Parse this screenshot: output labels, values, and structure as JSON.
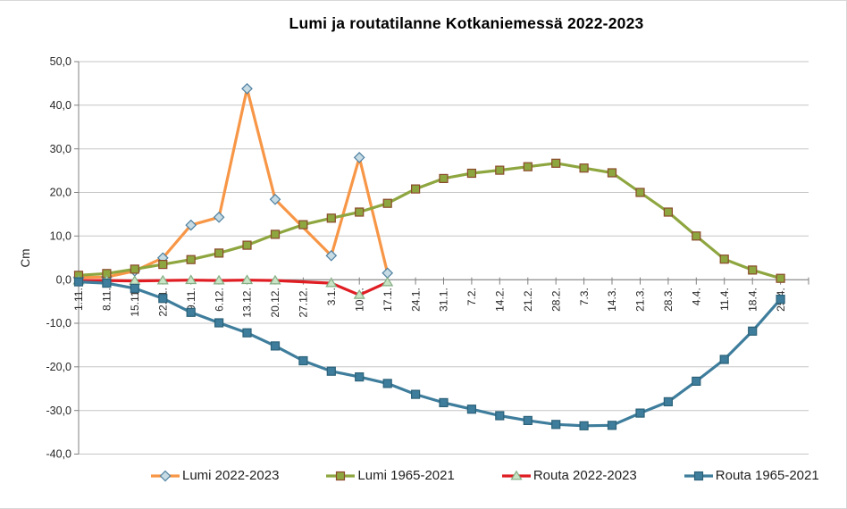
{
  "chart_data": {
    "type": "line",
    "title": "Lumi ja routatilanne Kotkaniemessä 2022-2023",
    "ylabel": "Cm",
    "ylim": [
      -40,
      50
    ],
    "ytick_step": 10,
    "ytick_labels": [
      "50,0",
      "40,0",
      "30,0",
      "20,0",
      "10,0",
      "0,0",
      "-10,0",
      "-20,0",
      "-30,0",
      "-40,0"
    ],
    "grid": "horizontal-only",
    "legend_position": "bottom",
    "categories": [
      "1.11.",
      "8.11.",
      "15.11.",
      "22.11.",
      "29.11.",
      "6.12.",
      "13.12.",
      "20.12.",
      "27.12.",
      "3.1.",
      "10.1.",
      "17.1.",
      "24.1.",
      "31.1.",
      "7.2.",
      "14.2.",
      "21.2.",
      "28.2.",
      "7.3.",
      "14.3.",
      "21.3.",
      "28.3.",
      "4.4.",
      "11.4.",
      "18.4.",
      "25.4."
    ],
    "axis_color": "#808080",
    "gridline_color": "#c6c6c6",
    "tick_label_color": "#262626",
    "series": [
      {
        "name": "Lumi 2022-2023",
        "line_color": "#F79646",
        "marker": "diamond",
        "marker_fill": "#C6DBE4",
        "marker_border": "#4E80A0",
        "values": [
          0.5,
          0.6,
          2.0,
          5.0,
          12.5,
          14.3,
          43.8,
          18.4,
          null,
          5.5,
          28.0,
          1.5,
          null,
          null,
          null,
          null,
          null,
          null,
          null,
          null,
          null,
          null,
          null,
          null,
          null,
          null
        ]
      },
      {
        "name": "Lumi 1965-2021",
        "line_color": "#8EA63F",
        "marker": "square",
        "marker_fill": "#8EA63F",
        "marker_border": "#8A4A2B",
        "values": [
          1.0,
          1.4,
          2.4,
          3.5,
          4.6,
          6.1,
          7.9,
          10.4,
          12.6,
          14.1,
          15.5,
          17.5,
          20.8,
          23.2,
          24.4,
          25.1,
          25.9,
          26.7,
          25.6,
          24.5,
          20.0,
          15.5,
          10.0,
          4.7,
          2.2,
          0.3
        ]
      },
      {
        "name": "Routa 2022-2023",
        "line_color": "#DF1D23",
        "marker": "triangle",
        "marker_fill": "#C9E3C5",
        "marker_border": "#84AE84",
        "values": [
          -0.2,
          -0.2,
          -0.3,
          -0.2,
          -0.1,
          -0.2,
          -0.1,
          -0.2,
          null,
          -0.8,
          -3.5,
          -0.6,
          null,
          null,
          null,
          null,
          null,
          null,
          null,
          null,
          null,
          null,
          null,
          null,
          null,
          null
        ]
      },
      {
        "name": "Routa 1965-2021",
        "line_color": "#3E7D9C",
        "marker": "square",
        "marker_fill": "#3E7D9C",
        "marker_border": "#2C6279",
        "values": [
          -0.5,
          -0.8,
          -2.0,
          -4.3,
          -7.5,
          -9.9,
          -12.2,
          -15.2,
          -18.6,
          -21.0,
          -22.3,
          -23.8,
          -26.3,
          -28.2,
          -29.7,
          -31.2,
          -32.3,
          -33.2,
          -33.5,
          -33.4,
          -30.6,
          -28.0,
          -23.3,
          -18.3,
          -11.8,
          -4.5
        ]
      }
    ]
  }
}
